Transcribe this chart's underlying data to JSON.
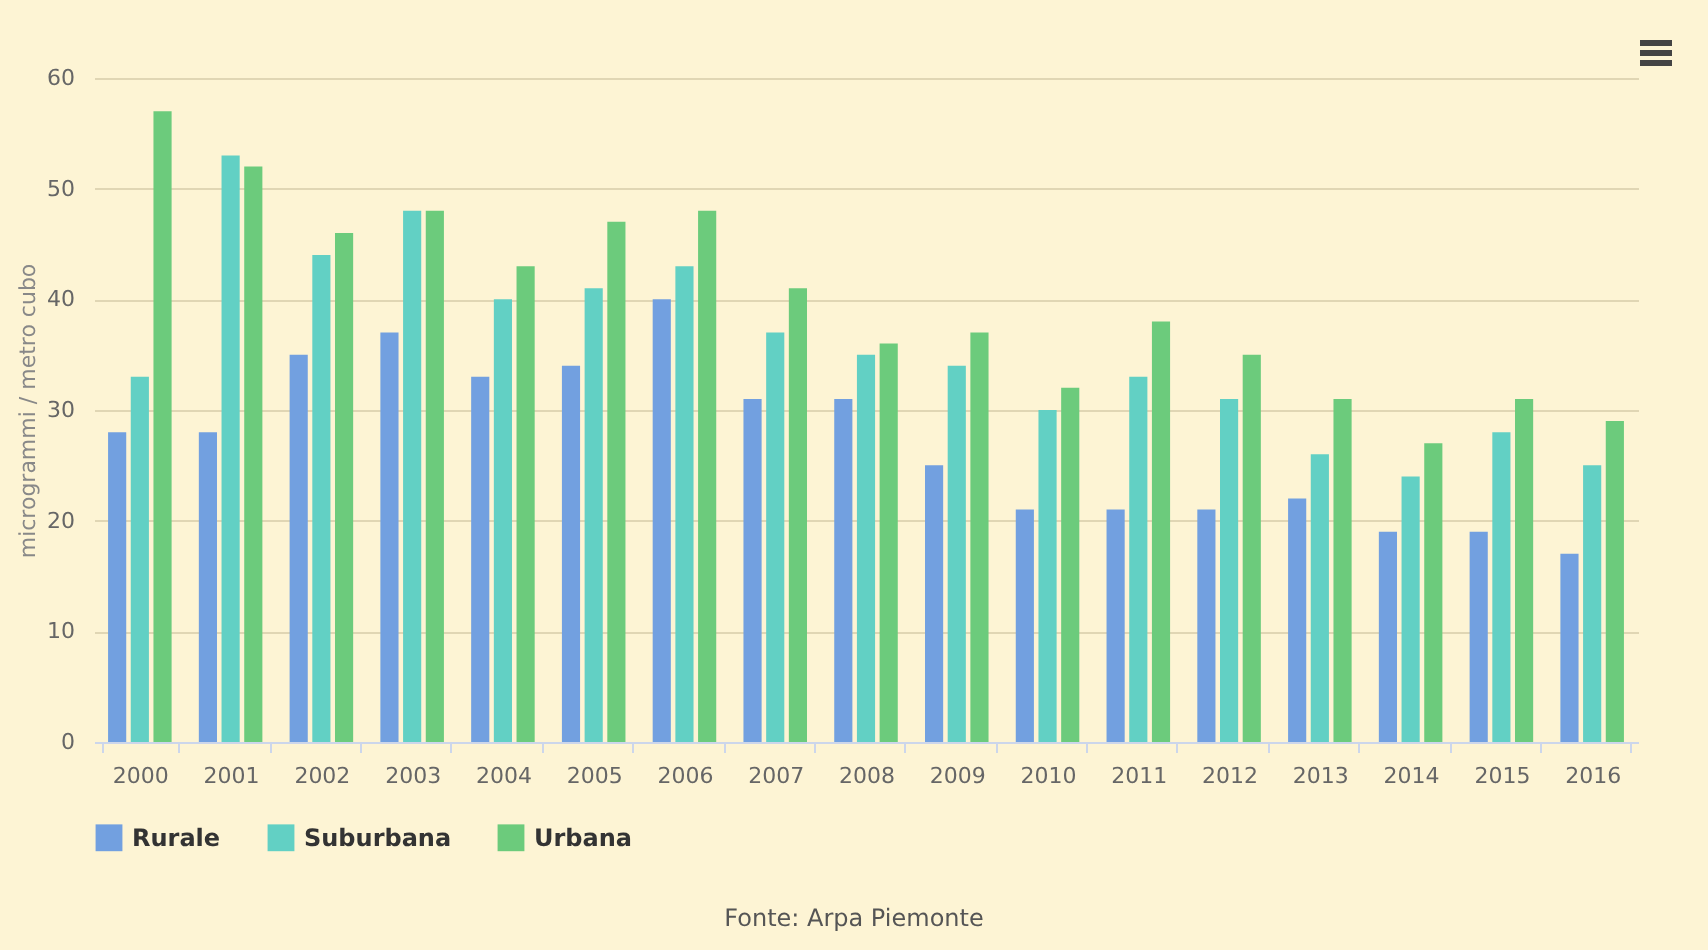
{
  "chart_data": {
    "type": "bar",
    "ylabel": "microgrammi / metro cubo",
    "categories": [
      "2000",
      "2001",
      "2002",
      "2003",
      "2004",
      "2005",
      "2006",
      "2007",
      "2008",
      "2009",
      "2010",
      "2011",
      "2012",
      "2013",
      "2014",
      "2015",
      "2016"
    ],
    "series": [
      {
        "name": "Rurale",
        "color": "#72a0e0",
        "values": [
          28,
          28,
          35,
          37,
          33,
          34,
          40,
          31,
          31,
          25,
          21,
          21,
          21,
          22,
          19,
          19,
          17
        ]
      },
      {
        "name": "Suburbana",
        "color": "#62d0c4",
        "values": [
          33,
          53,
          44,
          48,
          40,
          41,
          43,
          37,
          35,
          34,
          30,
          33,
          31,
          26,
          24,
          28,
          25
        ]
      },
      {
        "name": "Urbana",
        "color": "#6ccb7c",
        "values": [
          57,
          52,
          46,
          48,
          43,
          47,
          48,
          41,
          36,
          37,
          32,
          38,
          35,
          31,
          27,
          31,
          29
        ]
      }
    ],
    "ylim": [
      0,
      60
    ],
    "yticks": [
      0,
      10,
      20,
      30,
      40,
      50,
      60
    ],
    "grid": "y",
    "legend": "bottom",
    "annotations": [
      "Fonte: Arpa Piemonte"
    ]
  }
}
